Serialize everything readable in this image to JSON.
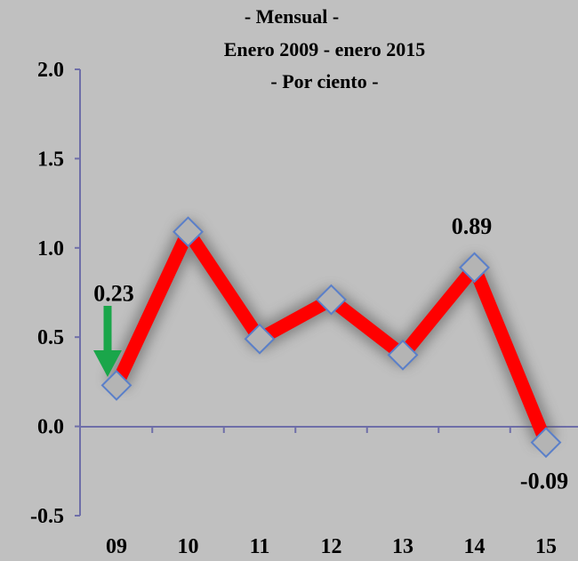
{
  "chart_data": {
    "type": "line",
    "title": [
      "- Mensual -",
      "Enero 2009 - enero 2015",
      "- Por ciento -"
    ],
    "categories": [
      "09",
      "10",
      "11",
      "12",
      "13",
      "14",
      "15"
    ],
    "series": [
      {
        "values": [
          0.23,
          1.09,
          0.49,
          0.71,
          0.4,
          0.89,
          -0.09
        ]
      }
    ],
    "ylim": [
      -0.5,
      2.0
    ],
    "yticks": [
      "2.0",
      "1.5",
      "1.0",
      "0.5",
      "0.0",
      "-0.5"
    ],
    "data_labels": [
      {
        "index": 0,
        "text": "0.23"
      },
      {
        "index": 5,
        "text": "0.89"
      },
      {
        "index": 6,
        "text": "-0.09"
      }
    ],
    "annotation": "green arrow pointing to first point",
    "grid": false,
    "colors": {
      "background": "#c0c0c0",
      "line": "#ff0000",
      "marker": "#b4b4b4",
      "marker_border": "#5a7fc9",
      "axis": "#6e6ea8",
      "arrow": "#1aa64a"
    }
  }
}
